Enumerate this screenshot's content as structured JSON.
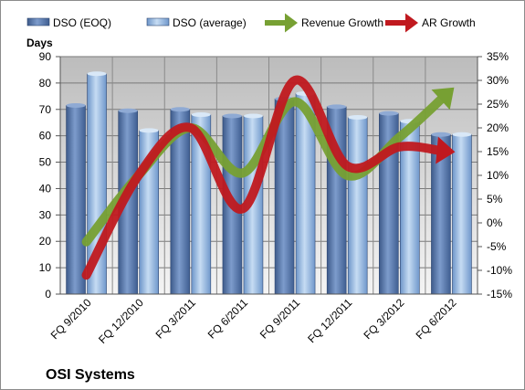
{
  "company": "OSI Systems",
  "chart_data": {
    "type": "bar",
    "categories": [
      "FQ 9/2010",
      "FQ 12/2010",
      "FQ 3/2011",
      "FQ 6/2011",
      "FQ 9/2011",
      "FQ 12/2011",
      "FQ 3/2012",
      "FQ 6/2012"
    ],
    "ylabel": "Days",
    "ylim": [
      0,
      90
    ],
    "y_ticks": [
      "0",
      "10",
      "20",
      "30",
      "40",
      "50",
      "60",
      "70",
      "80",
      "90"
    ],
    "y2lim": [
      -15,
      35
    ],
    "y2_ticks": [
      "-15%",
      "-10%",
      "-5%",
      "0%",
      "5%",
      "10%",
      "15%",
      "20%",
      "25%",
      "30%",
      "35%"
    ],
    "legend_position": "top",
    "grid": true,
    "series": [
      {
        "name": "DSO (EOQ)",
        "type": "bar",
        "axis": "left",
        "color": "#4f6fa3",
        "values": [
          71.5,
          69.5,
          70,
          67.5,
          74,
          71,
          68.5,
          60.5
        ]
      },
      {
        "name": "DSO (average)",
        "type": "bar",
        "axis": "left",
        "color": "#8db4e0",
        "values": [
          83.5,
          62,
          68,
          67.5,
          76,
          67,
          65.5,
          60.5
        ]
      },
      {
        "name": "Revenue Growth",
        "type": "line",
        "axis": "right",
        "color": "#77a033",
        "values": [
          -4,
          10,
          20,
          10.5,
          25.5,
          10,
          18,
          28
        ]
      },
      {
        "name": "AR Growth",
        "type": "line",
        "axis": "right",
        "color": "#c0191f",
        "values": [
          -11,
          10,
          20,
          3,
          30,
          12,
          16,
          15
        ]
      }
    ]
  }
}
